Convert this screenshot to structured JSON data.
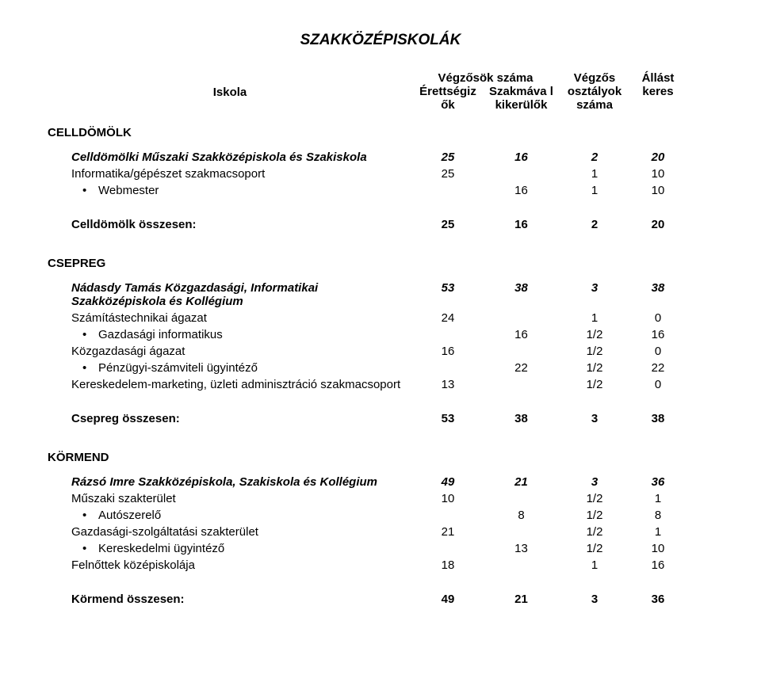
{
  "title": "SZAKKÖZÉPISKOLÁK",
  "headers": {
    "iskola": "Iskola",
    "vegzosok_szama": "Végzősök száma",
    "erettsegizok": "Érettségiz ők",
    "szakmaval": "Szakmáva l kikerülők",
    "vegzos_osztalyok": "Végzős osztályok száma",
    "allast_keres": "Állást keres"
  },
  "sections": [
    {
      "city": "CELLDÖMÖLK",
      "rows": [
        {
          "type": "school",
          "label": "Celldömölki Műszaki Szakközépiskola és Szakiskola",
          "c1": "25",
          "c2": "16",
          "c3": "2",
          "c4": "20"
        },
        {
          "type": "plain",
          "label": "Informatika/gépészet szakmacsoport",
          "c1": "25",
          "c2": "",
          "c3": "1",
          "c4": "10"
        },
        {
          "type": "bullet",
          "label": "Webmester",
          "c1": "",
          "c2": "16",
          "c3": "1",
          "c4": "10"
        }
      ],
      "total": {
        "label": "Celldömölk összesen:",
        "c1": "25",
        "c2": "16",
        "c3": "2",
        "c4": "20"
      }
    },
    {
      "city": "CSEPREG",
      "rows": [
        {
          "type": "school",
          "label": "Nádasdy Tamás Közgazdasági, Informatikai Szakközépiskola és Kollégium",
          "c1": "53",
          "c2": "38",
          "c3": "3",
          "c4": "38"
        },
        {
          "type": "plain",
          "label": "Számítástechnikai ágazat",
          "c1": "24",
          "c2": "",
          "c3": "1",
          "c4": "0"
        },
        {
          "type": "bullet",
          "label": "Gazdasági informatikus",
          "c1": "",
          "c2": "16",
          "c3": "1/2",
          "c4": "16"
        },
        {
          "type": "plain",
          "label": "Közgazdasági ágazat",
          "c1": "16",
          "c2": "",
          "c3": "1/2",
          "c4": "0"
        },
        {
          "type": "bullet",
          "label": "Pénzügyi-számviteli ügyintéző",
          "c1": "",
          "c2": "22",
          "c3": "1/2",
          "c4": "22"
        },
        {
          "type": "plain",
          "label": "Kereskedelem-marketing, üzleti adminisztráció szakmacsoport",
          "c1": "13",
          "c2": "",
          "c3": "1/2",
          "c4": "0"
        }
      ],
      "total": {
        "label": "Csepreg összesen:",
        "c1": "53",
        "c2": "38",
        "c3": "3",
        "c4": "38"
      }
    },
    {
      "city": "KÖRMEND",
      "rows": [
        {
          "type": "school",
          "label": "Rázsó Imre Szakközépiskola, Szakiskola és Kollégium",
          "c1": "49",
          "c2": "21",
          "c3": "3",
          "c4": "36"
        },
        {
          "type": "plain",
          "label": "Műszaki szakterület",
          "c1": "10",
          "c2": "",
          "c3": "1/2",
          "c4": "1"
        },
        {
          "type": "bullet",
          "label": "Autószerelő",
          "c1": "",
          "c2": "8",
          "c3": "1/2",
          "c4": "8"
        },
        {
          "type": "plain",
          "label": "Gazdasági-szolgáltatási szakterület",
          "c1": "21",
          "c2": "",
          "c3": "1/2",
          "c4": "1"
        },
        {
          "type": "bullet",
          "label": "Kereskedelmi ügyintéző",
          "c1": "",
          "c2": "13",
          "c3": "1/2",
          "c4": "10"
        },
        {
          "type": "plain",
          "label": "Felnőttek középiskolája",
          "c1": "18",
          "c2": "",
          "c3": "1",
          "c4": "16"
        }
      ],
      "total": {
        "label": "Körmend összesen:",
        "c1": "49",
        "c2": "21",
        "c3": "3",
        "c4": "36"
      }
    }
  ]
}
